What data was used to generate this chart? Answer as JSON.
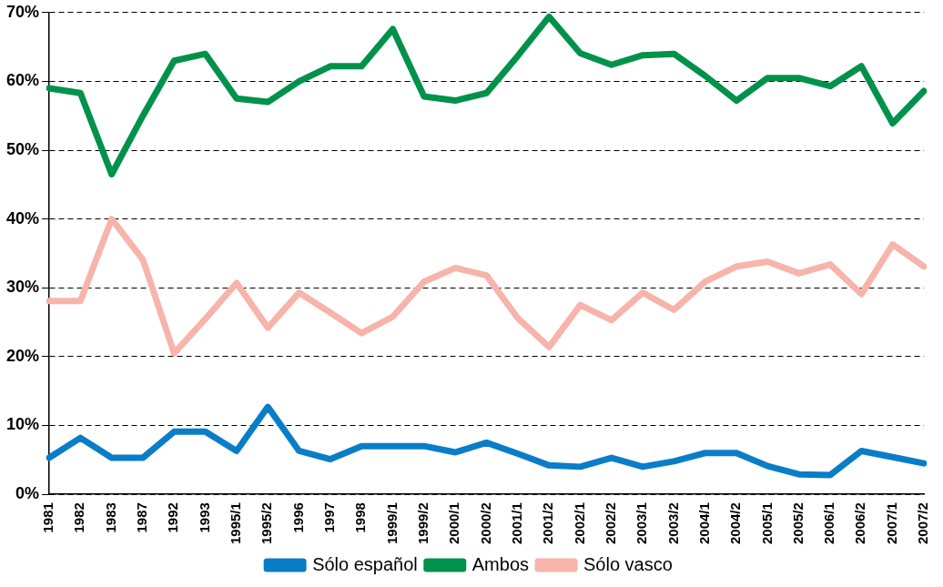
{
  "chart_data": {
    "type": "line",
    "categories": [
      "1981",
      "1982",
      "1983",
      "1987",
      "1992",
      "1993",
      "1995/1",
      "1995/2",
      "1996",
      "1997",
      "1998",
      "1999/1",
      "1999/2",
      "2000/1",
      "2000/2",
      "2001/1",
      "2001/2",
      "2002/1",
      "2002/2",
      "2003/1",
      "2003/2",
      "2004/1",
      "2004/2",
      "2005/1",
      "2005/2",
      "2006/1",
      "2006/2",
      "2007/1",
      "2007/2"
    ],
    "series": [
      {
        "name": "Sólo español",
        "color": "#0a7dc8",
        "values": [
          5.3,
          8.2,
          5.3,
          5.3,
          9.1,
          9.1,
          6.3,
          12.7,
          6.3,
          5.1,
          7,
          7,
          7,
          6.1,
          7.5,
          5.9,
          4.2,
          4,
          5.3,
          4,
          4.8,
          6,
          6,
          4.1,
          2.9,
          2.8,
          6.3,
          5.4,
          4.5
        ]
      },
      {
        "name": "Ambos",
        "color": "#00924a",
        "values": [
          59,
          58.3,
          46.5,
          55,
          63,
          64,
          57.5,
          57,
          60,
          62.2,
          62.2,
          67.6,
          57.8,
          57.2,
          58.3,
          63.7,
          69.4,
          64.1,
          62.4,
          63.8,
          64,
          60.8,
          57.2,
          60.5,
          60.5,
          59.3,
          62.2,
          53.9,
          58.6
        ]
      },
      {
        "name": "Sólo vasco",
        "color": "#f7b4aa",
        "values": [
          28.1,
          28.1,
          40,
          34.1,
          20.5,
          25.5,
          30.7,
          24.2,
          29.3,
          26.4,
          23.4,
          25.8,
          30.9,
          32.9,
          31.8,
          25.6,
          21.4,
          27.5,
          25.3,
          29.3,
          26.8,
          30.9,
          33.1,
          33.8,
          32.1,
          33.4,
          29.1,
          36.3,
          33.1
        ]
      }
    ],
    "ylim": [
      0,
      70
    ],
    "yticks": [
      {
        "value": 0,
        "label": "0%"
      },
      {
        "value": 10,
        "label": "10%"
      },
      {
        "value": 20,
        "label": "20%"
      },
      {
        "value": 30,
        "label": "30%"
      },
      {
        "value": 40,
        "label": "40%"
      },
      {
        "value": 50,
        "label": "50%"
      },
      {
        "value": 60,
        "label": "60%"
      },
      {
        "value": 70,
        "label": "70%"
      }
    ],
    "grid": "y",
    "legend": "bottom",
    "marker": "none",
    "line_style": "solid"
  }
}
